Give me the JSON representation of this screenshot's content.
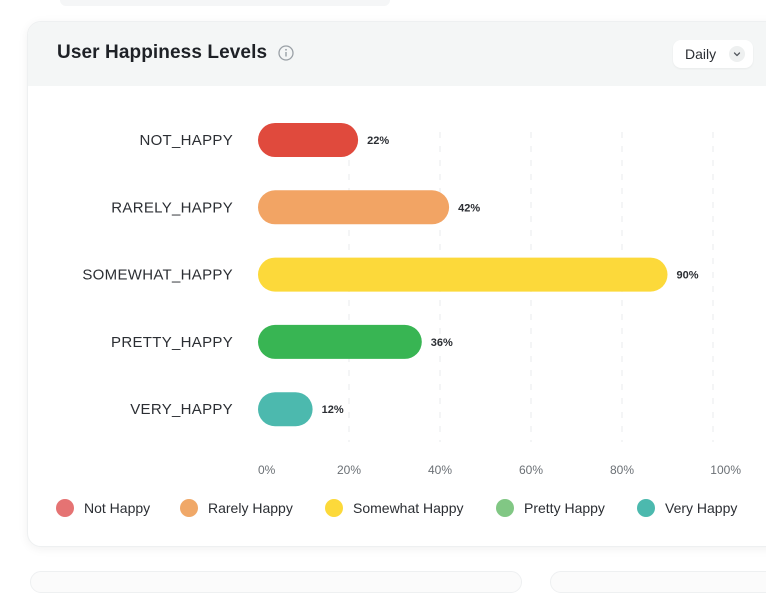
{
  "card": {
    "title": "User Happiness Levels",
    "icons": {
      "info": "info-circle-icon",
      "dropdown": "chevron-down-icon"
    },
    "period_selector": {
      "selected": "Daily"
    }
  },
  "chart_data": {
    "type": "bar",
    "orientation": "horizontal",
    "title": "User Happiness Levels",
    "categories": [
      "NOT_HAPPY",
      "RARELY_HAPPY",
      "SOMEWHAT_HAPPY",
      "PRETTY_HAPPY",
      "VERY_HAPPY"
    ],
    "values": [
      22,
      42,
      90,
      36,
      12
    ],
    "data_labels": [
      "22%",
      "42%",
      "90%",
      "36%",
      "12%"
    ],
    "colors": [
      "#e04a3d",
      "#f2a464",
      "#fcd93a",
      "#38b553",
      "#4cb9ae"
    ],
    "xlim": [
      0,
      100
    ],
    "x_ticks": [
      "0%",
      "20%",
      "40%",
      "60%",
      "80%",
      "100%"
    ],
    "grid": true,
    "legend": {
      "position": "bottom",
      "entries": [
        {
          "label": "Not Happy",
          "color": "#e57373"
        },
        {
          "label": "Rarely Happy",
          "color": "#f0a868"
        },
        {
          "label": "Somewhat Happy",
          "color": "#fcd93a"
        },
        {
          "label": "Pretty Happy",
          "color": "#81c784"
        },
        {
          "label": "Very Happy",
          "color": "#4cb9ae"
        }
      ]
    }
  }
}
